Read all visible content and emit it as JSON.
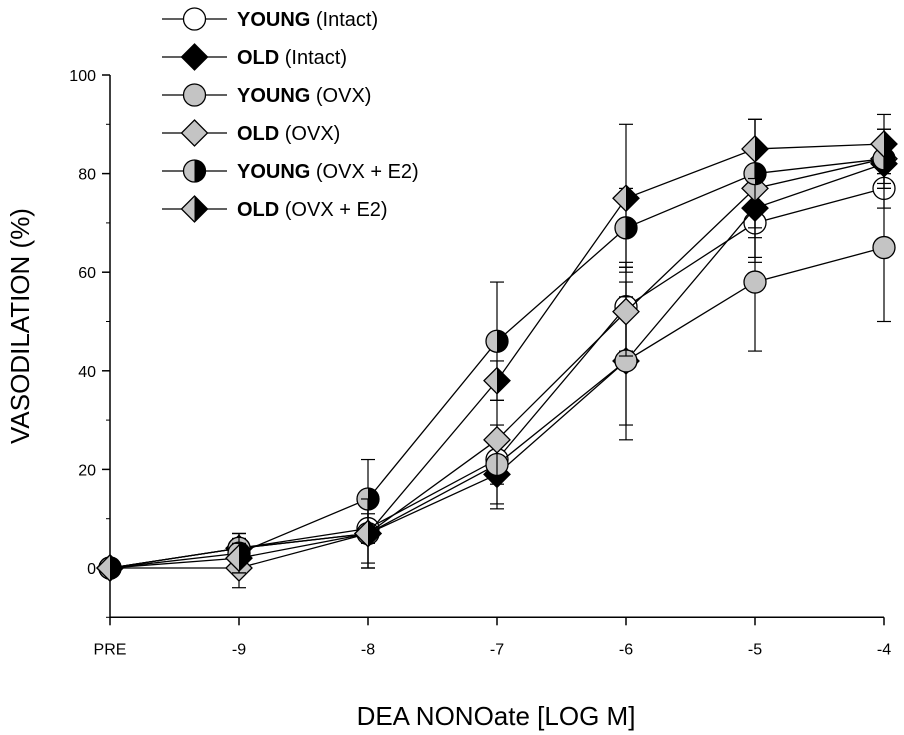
{
  "chart_data": {
    "type": "line",
    "xlabel": "DEA NONOate [LOG M]",
    "ylabel": "VASODILATION (%)",
    "categories": [
      "PRE",
      "-9",
      "-8",
      "-7",
      "-6",
      "-5",
      "-4"
    ],
    "yticks": [
      "0",
      "20",
      "40",
      "60",
      "80",
      "100"
    ],
    "ylim": [
      -10,
      100
    ],
    "grid": false,
    "legend": {
      "placement": "top-left"
    },
    "series": [
      {
        "name": "YOUNG (Intact)",
        "group": "YOUNG",
        "condition": "(Intact)",
        "marker": "circle",
        "fill": "open",
        "values": [
          0,
          4,
          8,
          22,
          53,
          70,
          77
        ],
        "errors": [
          0,
          2,
          3,
          5,
          9,
          8,
          4
        ]
      },
      {
        "name": "OLD (Intact)",
        "group": "OLD",
        "condition": "(Intact)",
        "marker": "diamond",
        "fill": "black",
        "values": [
          0,
          4,
          7,
          19,
          42,
          73,
          82
        ],
        "errors": [
          0,
          3,
          6,
          7,
          13,
          6,
          4
        ]
      },
      {
        "name": "YOUNG (OVX)",
        "group": "YOUNG",
        "condition": "(OVX)",
        "marker": "circle",
        "fill": "gray",
        "values": [
          0,
          4,
          7,
          21,
          42,
          58,
          65
        ],
        "errors": [
          0,
          3,
          7,
          8,
          16,
          14,
          15
        ]
      },
      {
        "name": "OLD (OVX)",
        "group": "OLD",
        "condition": "(OVX)",
        "marker": "diamond",
        "fill": "gray",
        "values": [
          0,
          0,
          7,
          26,
          52,
          77,
          83
        ],
        "errors": [
          0,
          4,
          7,
          8,
          9,
          14,
          6
        ]
      },
      {
        "name": "YOUNG (OVX + E2)",
        "group": "YOUNG",
        "condition": "(OVX + E2)",
        "marker": "circle",
        "fill": "half",
        "values": [
          0,
          3,
          14,
          46,
          69,
          80,
          83
        ],
        "errors": [
          0,
          4,
          8,
          12,
          8,
          11,
          6
        ]
      },
      {
        "name": "OLD (OVX + E2)",
        "group": "OLD",
        "condition": "(OVX + E2)",
        "marker": "diamond",
        "fill": "half",
        "values": [
          0,
          2,
          7,
          38,
          75,
          85,
          86
        ],
        "errors": [
          0,
          3,
          7,
          4,
          15,
          6,
          6
        ]
      }
    ]
  },
  "colors": {
    "black": "#000000",
    "gray": "#c4c4c4",
    "white": "#ffffff",
    "axis": "#000000"
  }
}
